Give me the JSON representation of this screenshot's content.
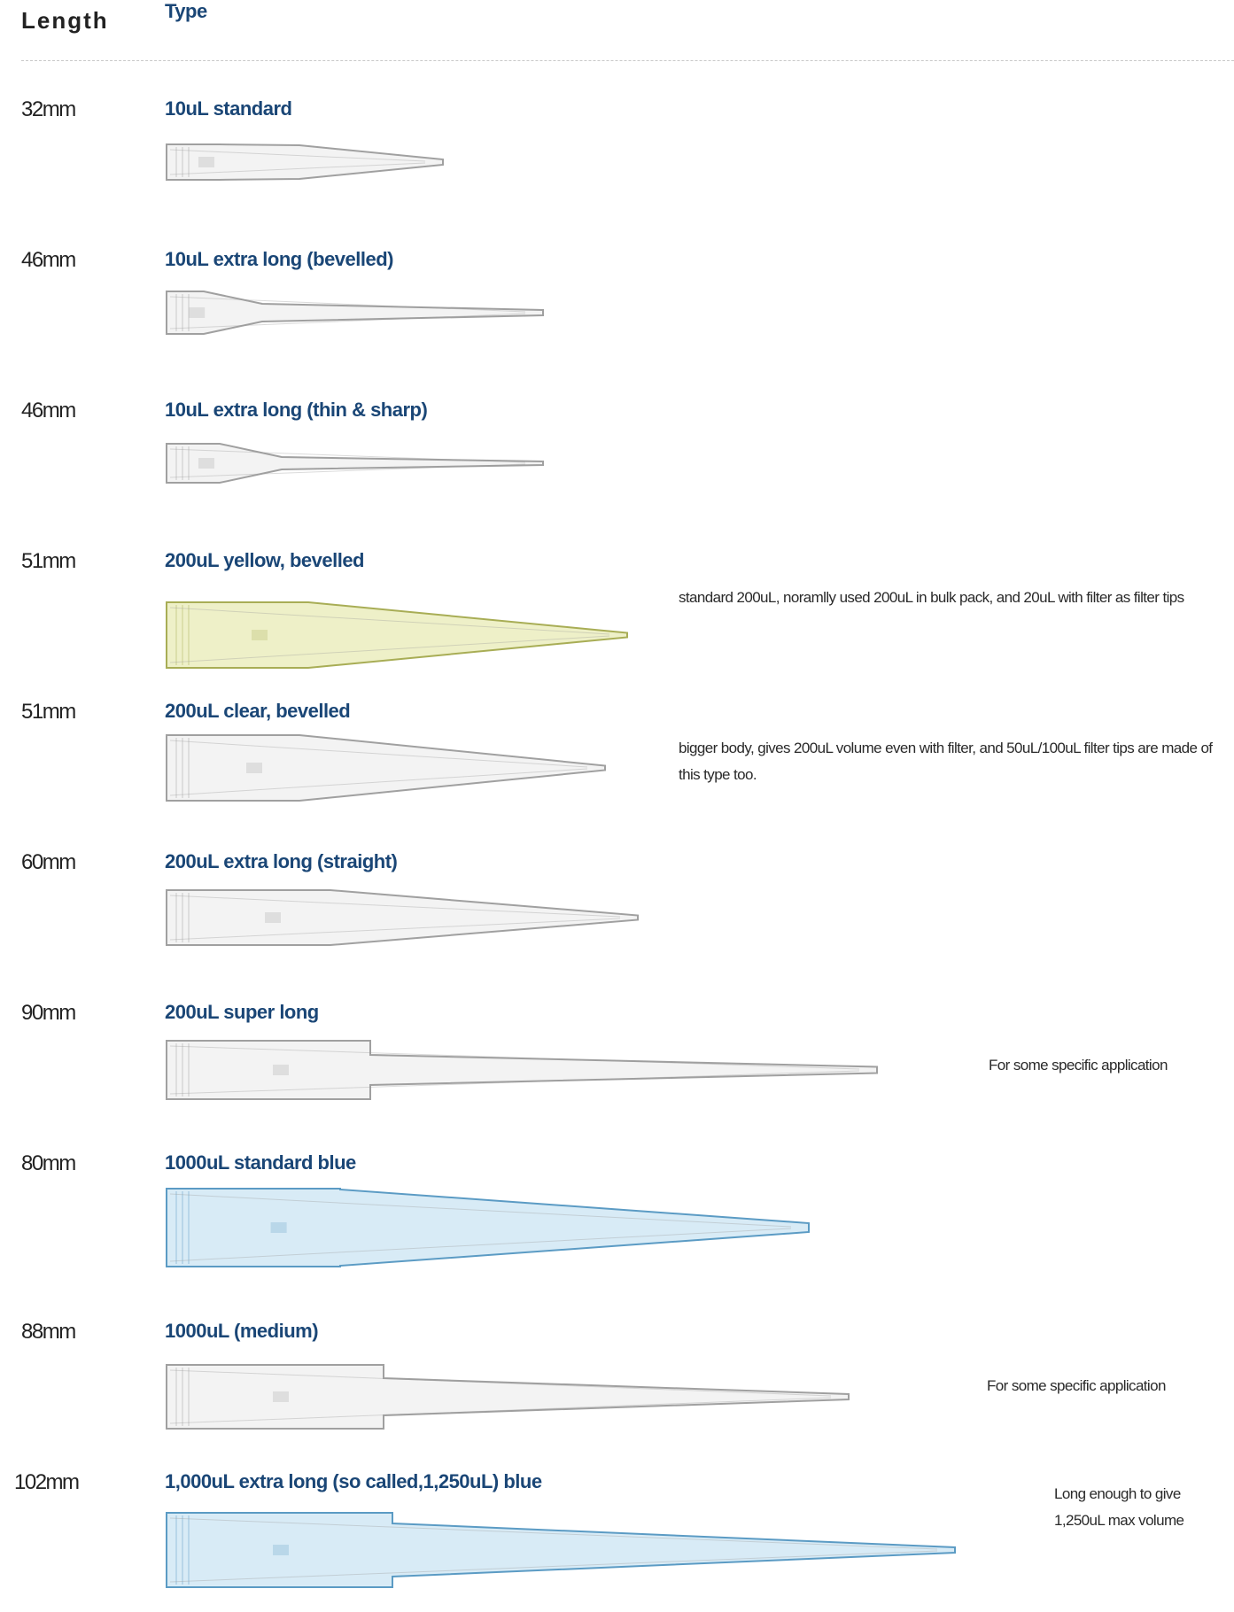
{
  "headers": {
    "length": "Length",
    "type": "Type"
  },
  "rows": [
    {
      "length": "32mm",
      "type": "10uL standard",
      "note": "",
      "tip_color": "#c8c8c8"
    },
    {
      "length": "46mm",
      "type": "10uL extra long (bevelled)",
      "note": "",
      "tip_color": "#c8c8c8"
    },
    {
      "length": "46mm",
      "type": "10uL extra long (thin & sharp)",
      "note": "",
      "tip_color": "#c8c8c8"
    },
    {
      "length": "51mm",
      "type": "200uL yellow, bevelled",
      "note": "standard 200uL, noramlly used 200uL in bulk pack, and 20uL with filter as filter tips",
      "tip_color": "#d4d88a"
    },
    {
      "length": "51mm",
      "type": "200uL clear, bevelled",
      "note": "bigger body, gives 200uL volume even with filter, and 50uL/100uL filter tips are made of this type too.",
      "tip_color": "#c8c8c8"
    },
    {
      "length": "60mm",
      "type": "200uL extra long (straight)",
      "note": "",
      "tip_color": "#c8c8c8"
    },
    {
      "length": "90mm",
      "type": "200uL super long",
      "note": "For some specific application",
      "tip_color": "#c8c8c8"
    },
    {
      "length": "80mm",
      "type": "1000uL standard blue",
      "note": "",
      "tip_color": "#9cc7e2"
    },
    {
      "length": "88mm",
      "type": "1000uL (medium)",
      "note": "For some specific application",
      "tip_color": "#c8c8c8"
    },
    {
      "length": "102mm",
      "type": "1,000uL extra long (so called,1,250uL) blue",
      "note": "Long enough to give 1,250uL max volume",
      "tip_color": "#9cc7e2"
    }
  ]
}
